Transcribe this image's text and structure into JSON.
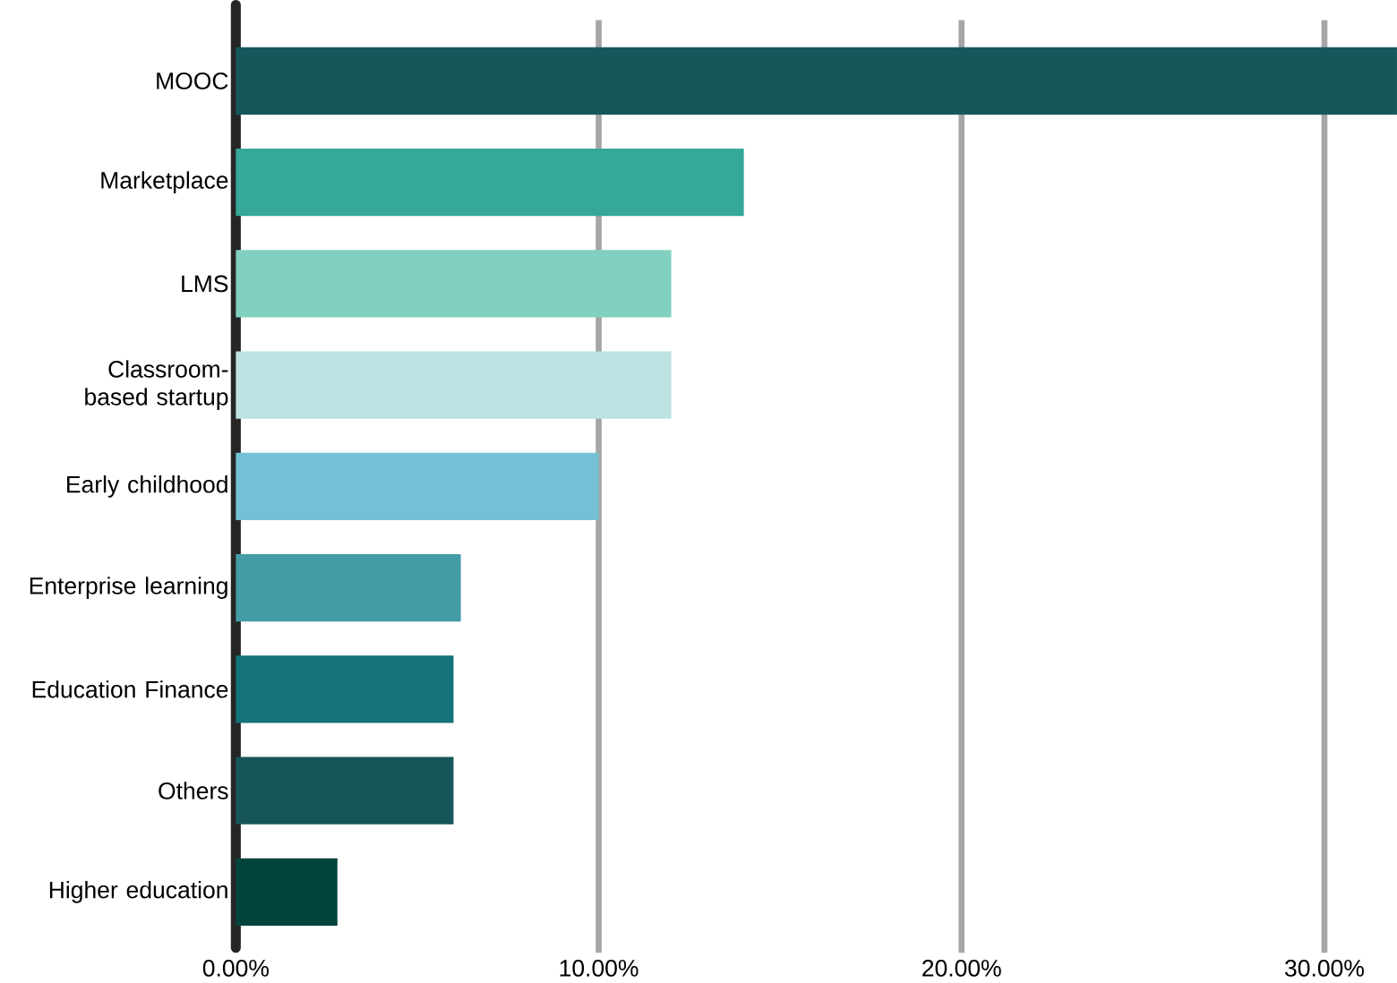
{
  "chart_data": {
    "type": "bar",
    "orientation": "horizontal",
    "categories": [
      "MOOC",
      "Marketplace",
      "LMS",
      "Classroom-based startup",
      "Early childhood",
      "Enterprise learning",
      "Education Finance",
      "Others",
      "Higher education"
    ],
    "values": [
      32,
      14,
      12,
      12,
      10,
      6.2,
      6,
      6,
      2.8
    ],
    "colors": [
      "#15585c",
      "#35a898",
      "#82d0c0",
      "#bce3e2",
      "#74c0d4",
      "#449ca6",
      "#13727a",
      "#16565a",
      "#04443f"
    ],
    "xlim": [
      0,
      32
    ],
    "xticks": [
      {
        "value": 0,
        "label": "0.00%"
      },
      {
        "value": 10,
        "label": "10.00%"
      },
      {
        "value": 20,
        "label": "20.00%"
      },
      {
        "value": 30,
        "label": "30.00%"
      }
    ],
    "grid": "x"
  }
}
